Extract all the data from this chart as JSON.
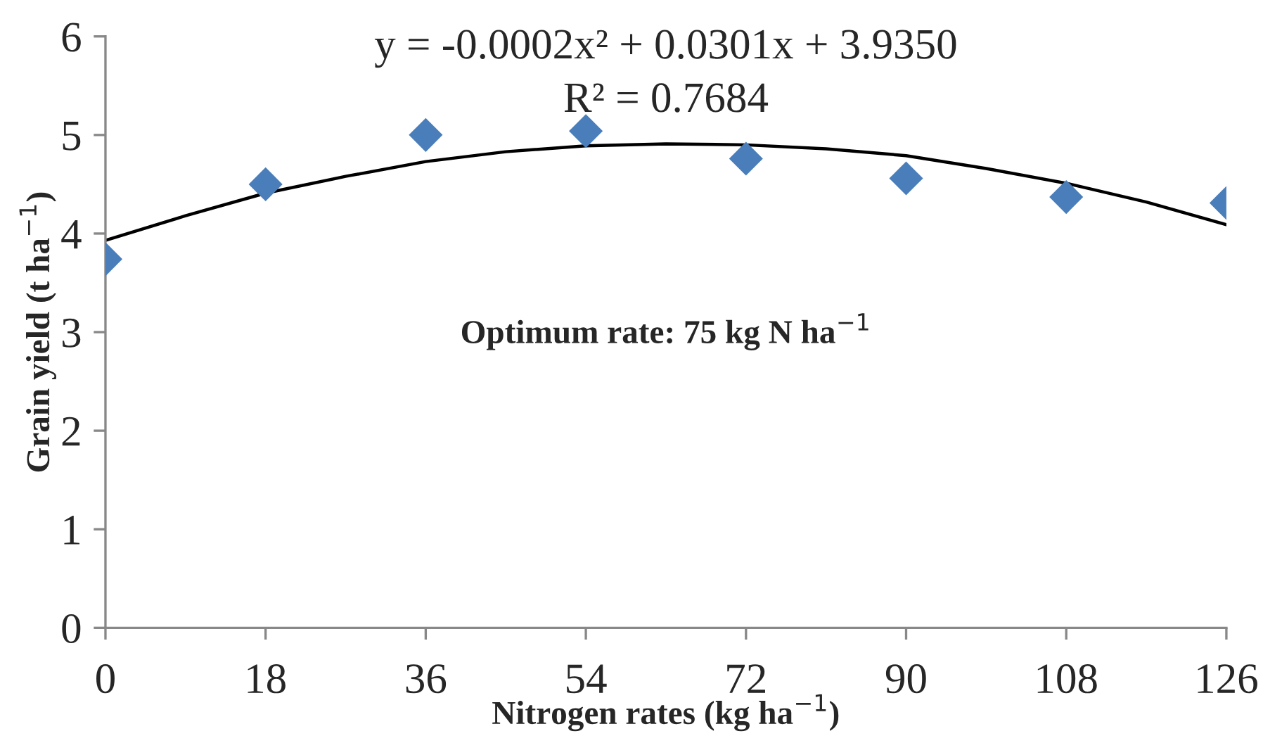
{
  "chart_data": {
    "type": "scatter",
    "xlabel": "Nitrogen rates (kg ha$^{−1}$)",
    "ylabel": "Grain yield (t ha$^{−1}$)",
    "annotations": [
      "y = -0.0002x² + 0.0301x + 3.9350",
      "R² = 0.7684",
      "Optimum rate: 75 kg N ha$^{−1}$"
    ],
    "x": [
      0,
      18,
      36,
      54,
      72,
      90,
      108,
      126
    ],
    "series": [
      {
        "color": "#4a7ebb",
        "values": [
          3.74,
          4.5,
          5.0,
          5.04,
          4.76,
          4.56,
          4.37,
          4.31
        ],
        "marker": "diamond"
      },
      {
        "type": "line",
        "color": "#000000",
        "x": [
          0,
          9,
          18,
          27,
          36,
          45,
          54,
          63,
          72,
          81,
          90,
          99,
          108,
          117,
          126
        ],
        "values": [
          3.93,
          4.18,
          4.41,
          4.58,
          4.73,
          4.83,
          4.89,
          4.91,
          4.9,
          4.86,
          4.79,
          4.66,
          4.51,
          4.32,
          4.09
        ],
        "line_style": "solid"
      }
    ],
    "xlim": [
      0,
      126
    ],
    "xticks": [
      0,
      18,
      36,
      54,
      72,
      90,
      108,
      126
    ],
    "ylim": [
      0,
      6
    ],
    "yticks": [
      0,
      1,
      2,
      3,
      4,
      5,
      6
    ],
    "grid": false,
    "legend": false
  }
}
